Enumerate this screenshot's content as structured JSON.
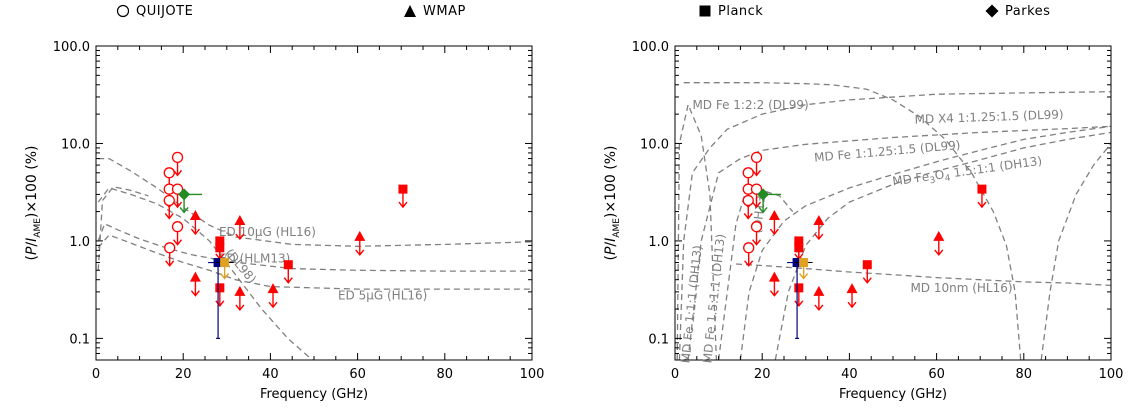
{
  "legend": {
    "quijote": "QUIJOTE",
    "wmap": "WMAP",
    "planck": "Planck",
    "parkes": "Parkes"
  },
  "colors": {
    "quijote": "#ff0000",
    "wmap": "#ff0000",
    "planck": "#ff0000",
    "parkes": "#228b22",
    "planck_combined": "#000080",
    "extra": "#e0a020",
    "models": "#808080"
  },
  "chart_data": [
    {
      "type": "scatter",
      "xlabel": "Frequency (GHz)",
      "ylabel": "(P/I_AME)×100 (%)",
      "ylabel_parts": {
        "open": "(",
        "p": "P",
        "slash": "/",
        "i": "I",
        "sub": "AME",
        "rest": ")×100 (%)"
      },
      "xlim": [
        0,
        100
      ],
      "ylim": [
        0.06,
        100
      ],
      "yscale": "log",
      "xticks": [
        "0",
        "20",
        "40",
        "60",
        "80",
        "100"
      ],
      "yticks": [
        "0.1",
        "1.0",
        "10.0",
        "100.0"
      ],
      "series": [
        {
          "name": "QUIJOTE",
          "marker": "open-circle",
          "upper_limit": true,
          "points": [
            [
              16.8,
              5.0
            ],
            [
              16.8,
              3.4
            ],
            [
              16.9,
              0.85
            ],
            [
              18.7,
              7.2
            ],
            [
              18.7,
              3.4
            ],
            [
              18.7,
              1.4
            ],
            [
              16.8,
              2.6
            ]
          ]
        },
        {
          "name": "WMAP",
          "marker": "filled-triangle",
          "upper_limit": true,
          "points": [
            [
              22.8,
              1.8
            ],
            [
              22.8,
              0.42
            ],
            [
              33,
              1.6
            ],
            [
              33,
              0.3
            ],
            [
              40.6,
              0.32
            ],
            [
              60.5,
              1.1
            ]
          ]
        },
        {
          "name": "Planck",
          "marker": "filled-square",
          "upper_limit": true,
          "points": [
            [
              28.4,
              1.0
            ],
            [
              28.4,
              0.85
            ],
            [
              28.4,
              0.33
            ],
            [
              44.1,
              0.57
            ],
            [
              70.4,
              3.4
            ]
          ]
        },
        {
          "name": "Parkes",
          "marker": "filled-diamond",
          "upper_limit": true,
          "points": [
            [
              20.2,
              3.0
            ]
          ]
        },
        {
          "marker": "navy-square",
          "upper_limit": false,
          "points": [
            [
              28,
              0.6
            ]
          ],
          "yerr_low": 0.1
        },
        {
          "marker": "orange-square",
          "upper_limit": true,
          "points": [
            [
              29.5,
              0.6
            ]
          ]
        }
      ],
      "models": [
        {
          "label": "ED 10μG (HL16)",
          "points": [
            [
              0.5,
              7
            ],
            [
              3,
              7
            ],
            [
              8,
              5.2
            ],
            [
              14,
              3.5
            ],
            [
              20,
              2.2
            ],
            [
              26,
              1.45
            ],
            [
              32,
              1.1
            ],
            [
              45,
              0.92
            ],
            [
              60,
              0.88
            ],
            [
              80,
              0.92
            ],
            [
              100,
              0.98
            ]
          ]
        },
        {
          "label": "ED (HLM13)",
          "points": [
            [
              0.5,
              1.0
            ],
            [
              2,
              1.5
            ],
            [
              5,
              1.3
            ],
            [
              10,
              1.05
            ],
            [
              16,
              0.85
            ],
            [
              22,
              0.72
            ],
            [
              30,
              0.62
            ],
            [
              45,
              0.52
            ],
            [
              60,
              0.5
            ],
            [
              80,
              0.49
            ],
            [
              100,
              0.49
            ]
          ]
        },
        {
          "label": "ED 5μG (HL16)",
          "points": [
            [
              0.5,
              0.85
            ],
            [
              3,
              1.15
            ],
            [
              8,
              0.95
            ],
            [
              14,
              0.75
            ],
            [
              20,
              0.6
            ],
            [
              26,
              0.5
            ],
            [
              32,
              0.4
            ],
            [
              40,
              0.34
            ],
            [
              60,
              0.32
            ],
            [
              80,
              0.32
            ],
            [
              100,
              0.32
            ]
          ]
        },
        {
          "label": "ED (DL98)",
          "points": [
            [
              0.5,
              2.5
            ],
            [
              3,
              3.5
            ],
            [
              8,
              3.0
            ],
            [
              14,
              2.4
            ],
            [
              20,
              1.7
            ],
            [
              26,
              1.0
            ],
            [
              32,
              0.45
            ],
            [
              38,
              0.2
            ],
            [
              44,
              0.1
            ],
            [
              50,
              0.058
            ]
          ]
        },
        {
          "points": [
            [
              0.5,
              0.5
            ],
            [
              1.5,
              2.6
            ],
            [
              4,
              3.6
            ],
            [
              8,
              3.3
            ],
            [
              12,
              2.9
            ]
          ]
        }
      ],
      "annotations": [
        {
          "text": "ED 10μG (HL16)",
          "x": 28.2,
          "y": 1.12
        },
        {
          "text": "ED (HLM13)",
          "x": 28.2,
          "y": 0.6
        },
        {
          "text": "ED 5μG (HL16)",
          "x": 55.5,
          "y": 0.25
        }
      ],
      "dl98_text": "(DL98)"
    },
    {
      "type": "scatter",
      "xlabel": "Frequency (GHz)",
      "ylabel": "(P/I_AME)×100 (%)",
      "ylabel_parts": {
        "open": "(",
        "p": "P",
        "slash": "/",
        "i": "I",
        "sub": "AME",
        "rest": ")×100 (%)"
      },
      "xlim": [
        0,
        100
      ],
      "ylim": [
        0.06,
        100
      ],
      "yscale": "log",
      "xticks": [
        "0",
        "20",
        "40",
        "60",
        "80",
        "100"
      ],
      "yticks": [
        "0.1",
        "1.0",
        "10.0",
        "100.0"
      ],
      "series": [
        {
          "name": "QUIJOTE",
          "marker": "open-circle",
          "upper_limit": true,
          "points": [
            [
              16.8,
              5.0
            ],
            [
              16.8,
              3.4
            ],
            [
              16.9,
              0.85
            ],
            [
              18.7,
              7.2
            ],
            [
              18.7,
              3.4
            ],
            [
              18.7,
              1.4
            ],
            [
              16.8,
              2.6
            ]
          ]
        },
        {
          "name": "WMAP",
          "marker": "filled-triangle",
          "upper_limit": true,
          "points": [
            [
              22.8,
              1.8
            ],
            [
              22.8,
              0.42
            ],
            [
              33,
              1.6
            ],
            [
              33,
              0.3
            ],
            [
              40.6,
              0.32
            ],
            [
              60.5,
              1.1
            ]
          ]
        },
        {
          "name": "Planck",
          "marker": "filled-square",
          "upper_limit": true,
          "points": [
            [
              28.4,
              1.0
            ],
            [
              28.4,
              0.85
            ],
            [
              28.4,
              0.33
            ],
            [
              44.1,
              0.57
            ],
            [
              70.4,
              3.4
            ]
          ]
        },
        {
          "name": "Parkes",
          "marker": "filled-diamond",
          "upper_limit": true,
          "points": [
            [
              20.2,
              3.0
            ]
          ]
        },
        {
          "marker": "navy-square",
          "upper_limit": false,
          "points": [
            [
              28,
              0.6
            ]
          ],
          "yerr_low": 0.1
        },
        {
          "marker": "orange-square",
          "upper_limit": true,
          "points": [
            [
              29.5,
              0.6
            ]
          ]
        }
      ],
      "models": [
        {
          "label": "MD Fe 1:2:2 (DL99)",
          "points": [
            [
              2,
              42
            ],
            [
              10,
              42
            ],
            [
              20,
              42
            ],
            [
              30,
              41
            ],
            [
              36,
              40
            ],
            [
              44,
              36
            ],
            [
              50,
              28
            ],
            [
              56,
              19
            ],
            [
              62,
              11
            ],
            [
              68,
              5
            ],
            [
              73,
              2
            ],
            [
              76,
              0.9
            ],
            [
              78,
              0.3
            ],
            [
              79.3,
              0.06
            ]
          ]
        },
        {
          "label": "MD X4 1:1.25:1.5 (DL99)",
          "points": [
            [
              1,
              0.06
            ],
            [
              2,
              1
            ],
            [
              4,
              5
            ],
            [
              8,
              9
            ],
            [
              12,
              14
            ],
            [
              20,
              20
            ],
            [
              30,
              25
            ],
            [
              40,
              28
            ],
            [
              60,
              32
            ],
            [
              80,
              33
            ],
            [
              100,
              34
            ]
          ]
        },
        {
          "label": "MD Fe 1:1.25:1.5 (DL99)",
          "points": [
            [
              3,
              0.06
            ],
            [
              6,
              1
            ],
            [
              10,
              5
            ],
            [
              15,
              7
            ],
            [
              20,
              8.5
            ],
            [
              30,
              9.8
            ],
            [
              50,
              11.5
            ],
            [
              70,
              13
            ],
            [
              90,
              14.2
            ],
            [
              100,
              15
            ]
          ]
        },
        {
          "label": "MD Fe3O4 1.5:1:1 (DH13)",
          "points": [
            [
              15,
              0.06
            ],
            [
              17,
              0.3
            ],
            [
              20,
              0.8
            ],
            [
              25,
              1.6
            ],
            [
              30,
              2.3
            ],
            [
              40,
              3.5
            ],
            [
              50,
              4.8
            ],
            [
              60,
              6.5
            ],
            [
              70,
              8.5
            ],
            [
              80,
              11
            ],
            [
              90,
              13
            ],
            [
              100,
              15
            ]
          ]
        },
        {
          "label": "MD Fe3O4 1.5:1:1 (DH13)",
          "points": [
            [
              23,
              0.06
            ],
            [
              26,
              0.3
            ],
            [
              30,
              0.9
            ],
            [
              35,
              1.7
            ],
            [
              40,
              2.5
            ],
            [
              50,
              3.8
            ],
            [
              60,
              5.2
            ],
            [
              70,
              6.8
            ],
            [
              80,
              9
            ],
            [
              90,
              11
            ],
            [
              100,
              13
            ]
          ]
        },
        {
          "label": "MD 10nm (HL16)",
          "points": [
            [
              14,
              0.58
            ],
            [
              20,
              0.56
            ],
            [
              30,
              0.52
            ],
            [
              40,
              0.48
            ],
            [
              50,
              0.45
            ],
            [
              60,
              0.42
            ],
            [
              70,
              0.4
            ],
            [
              80,
              0.38
            ],
            [
              90,
              0.37
            ],
            [
              100,
              0.35
            ]
          ]
        },
        {
          "label": "MD Fe 1:1:1 (DH13)",
          "points": [
            [
              0.5,
              0.06
            ],
            [
              1,
              10
            ],
            [
              3,
              25
            ],
            [
              6,
              12
            ],
            [
              8,
              3
            ],
            [
              9.5,
              0.06
            ]
          ]
        },
        {
          "label": "MD Fe 1.5:1:1 (DH13)",
          "points": [
            [
              10,
              0.06
            ],
            [
              12,
              0.3
            ],
            [
              14,
              1.5
            ],
            [
              16,
              3
            ],
            [
              20,
              3.3
            ],
            [
              24,
              2.9
            ],
            [
              27,
              2
            ]
          ]
        },
        {
          "points": [
            [
              84,
              0.06
            ],
            [
              86,
              0.3
            ],
            [
              88,
              1
            ],
            [
              92,
              3
            ],
            [
              96,
              6
            ],
            [
              100,
              10
            ]
          ]
        }
      ],
      "annotations": [
        {
          "text_parts": [
            "MD Fe 1:2:2 (DL99)"
          ],
          "x": 4,
          "y": 22.5,
          "angle": 0
        },
        {
          "text_parts": [
            "MD X4 1:1.25:1.5 (DL99)"
          ],
          "x": 55,
          "y": 16,
          "angle": -2
        },
        {
          "text_parts": [
            "MD Fe 1:1.25:1.5 (DL99)"
          ],
          "x": 32,
          "y": 6.5,
          "angle": -5
        },
        {
          "text_parts": [
            "MD Fe",
            "3",
            "O",
            "4",
            " 1.5:1:1 (DH13)"
          ],
          "x": 50,
          "y": 3.7,
          "angle": -8
        },
        {
          "text_parts": [
            "MD 10nm (HL16)"
          ],
          "x": 54,
          "y": 0.3,
          "angle": 0
        },
        {
          "text_parts": [
            "MD Fe 1:1:1 (DH13)"
          ],
          "x": 3.3,
          "y": 0.055,
          "angle": -84
        },
        {
          "text_parts": [
            "MD Fe 1.5:1:1 (DH13)"
          ],
          "x": 8.3,
          "y": 0.055,
          "angle": -84
        },
        {
          "text_parts": [
            "(DH13)"
          ],
          "x": 19.7,
          "y": 1.18,
          "angle": -84
        }
      ]
    }
  ]
}
